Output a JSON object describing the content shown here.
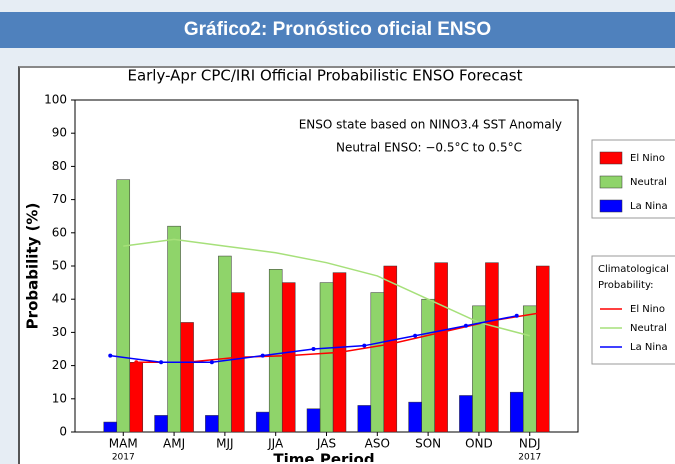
{
  "header": {
    "title": "Gráfico2: Pronóstico oficial ENSO"
  },
  "chart_data": {
    "type": "bar",
    "title": "Early-Apr CPC/IRI Official Probabilistic ENSO Forecast",
    "annotations": [
      "ENSO state based on NINO3.4 SST Anomaly",
      "Neutral ENSO: −0.5°C to 0.5°C"
    ],
    "xlabel": "Time Period",
    "ylabel": "Probability (%)",
    "categories": [
      "MAM",
      "AMJ",
      "MJJ",
      "JJA",
      "JAS",
      "ASO",
      "SON",
      "OND",
      "NDJ"
    ],
    "category_sublabels": [
      "2017",
      null,
      null,
      null,
      null,
      null,
      null,
      null,
      "2017"
    ],
    "ylim": [
      0,
      100
    ],
    "yticks": [
      0,
      10,
      20,
      30,
      40,
      50,
      60,
      70,
      80,
      90,
      100
    ],
    "series": [
      {
        "name": "El Nino",
        "color": "#ff0000",
        "values": [
          21,
          33,
          42,
          45,
          48,
          50,
          51,
          51,
          50
        ]
      },
      {
        "name": "Neutral",
        "color": "#8fd46a",
        "values": [
          76,
          62,
          53,
          49,
          45,
          42,
          40,
          38,
          38
        ]
      },
      {
        "name": "La Nina",
        "color": "#0000ff",
        "values": [
          3,
          5,
          5,
          6,
          7,
          8,
          9,
          11,
          12
        ]
      }
    ],
    "climatology_title": "Climatological Probability:",
    "climatology_series": [
      {
        "name": "El Nino",
        "color": "#ff0000",
        "values": [
          21,
          21,
          22.5,
          23,
          24,
          26.5,
          30,
          33.5,
          36
        ]
      },
      {
        "name": "Neutral",
        "color": "#a6e07a",
        "values": [
          56,
          58,
          56,
          54,
          51,
          47,
          40,
          33,
          29
        ]
      },
      {
        "name": "La Nina",
        "color": "#0000ff",
        "values": [
          23,
          21,
          21,
          23,
          25,
          26,
          29,
          32,
          35
        ]
      }
    ]
  }
}
